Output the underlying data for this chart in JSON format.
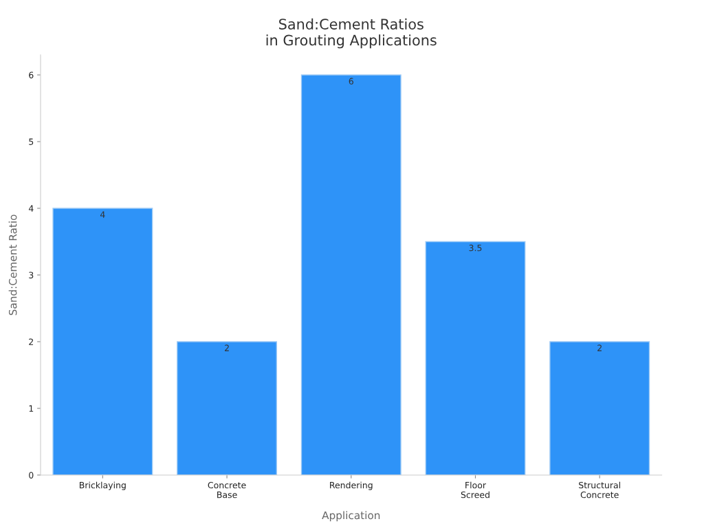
{
  "chart_data": {
    "type": "bar",
    "title": "Sand:Cement Ratios\nin Grouting Applications",
    "xlabel": "Application",
    "ylabel": "Sand:Cement Ratio",
    "categories": [
      "Bricklaying",
      "Concrete\nBase",
      "Rendering",
      "Floor\nScreed",
      "Structural\nConcrete"
    ],
    "values": [
      4,
      2,
      6,
      3.5,
      2
    ],
    "color": "#2e93f8",
    "ylim": [
      0,
      6.3
    ],
    "yticks": [
      0,
      1,
      2,
      3,
      4,
      5,
      6
    ],
    "grid": false,
    "data_labels": true
  }
}
